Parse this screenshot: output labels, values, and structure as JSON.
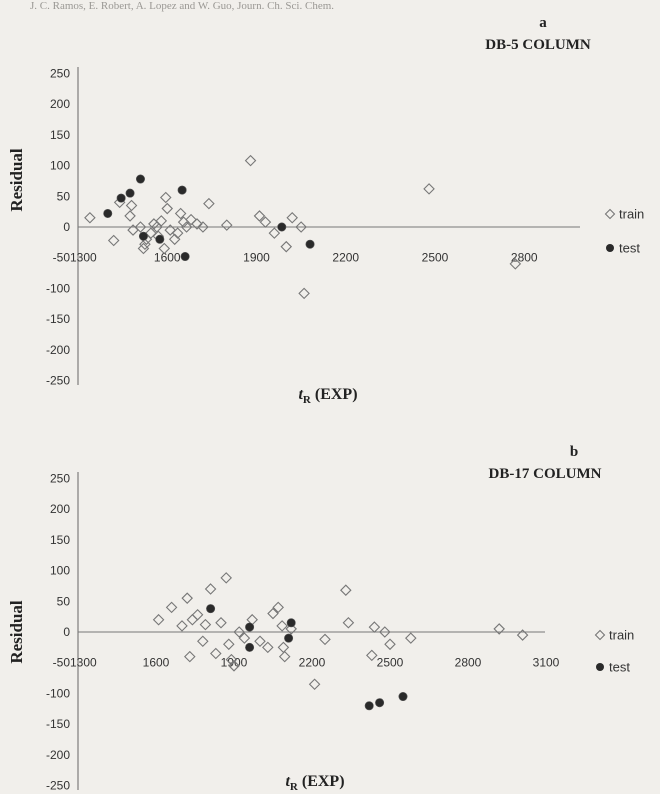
{
  "header_text": "J. C. Ramos, E. Robert, A. Lopez and W. Guo, Journ. Ch. Sci. Chem.",
  "chart_data": [
    {
      "type": "scatter",
      "panel_letter": "a",
      "title": "DB-5 COLUMN",
      "ylabel": "Residual",
      "xlabel_main": "t",
      "xlabel_sub": "R",
      "xlabel_rest": " (EXP)",
      "xlim": [
        1300,
        3100
      ],
      "ylim": [
        -250,
        250
      ],
      "yticks": [
        250,
        200,
        150,
        100,
        50,
        0,
        -50,
        -100,
        -150,
        -200,
        -250
      ],
      "ytick_labels": [
        "250",
        "200",
        "150",
        "100",
        "50",
        "0",
        "-50",
        "-100",
        "-150",
        "-200",
        "-250"
      ],
      "xticks": [
        1300,
        1600,
        1900,
        2200,
        2500,
        2800
      ],
      "xtick_labels": [
        "1300",
        "1600",
        "1900",
        "2200",
        "2500",
        "2800"
      ],
      "legend_position": "right",
      "grid": false,
      "series": [
        {
          "name": "train",
          "marker": "diamond-open",
          "points": [
            [
              1340,
              15
            ],
            [
              1420,
              -22
            ],
            [
              1440,
              40
            ],
            [
              1475,
              18
            ],
            [
              1480,
              35
            ],
            [
              1485,
              -5
            ],
            [
              1510,
              0
            ],
            [
              1520,
              -35
            ],
            [
              1525,
              -28
            ],
            [
              1530,
              -20
            ],
            [
              1545,
              -10
            ],
            [
              1555,
              5
            ],
            [
              1565,
              0
            ],
            [
              1570,
              -15
            ],
            [
              1580,
              10
            ],
            [
              1590,
              -35
            ],
            [
              1595,
              48
            ],
            [
              1600,
              30
            ],
            [
              1610,
              -5
            ],
            [
              1625,
              -20
            ],
            [
              1635,
              -10
            ],
            [
              1645,
              22
            ],
            [
              1655,
              8
            ],
            [
              1665,
              0
            ],
            [
              1680,
              12
            ],
            [
              1700,
              5
            ],
            [
              1720,
              0
            ],
            [
              1740,
              38
            ],
            [
              1800,
              3
            ],
            [
              1880,
              108
            ],
            [
              1910,
              18
            ],
            [
              1930,
              8
            ],
            [
              1960,
              -10
            ],
            [
              2000,
              -32
            ],
            [
              2020,
              15
            ],
            [
              2050,
              0
            ],
            [
              2060,
              -108
            ],
            [
              2480,
              62
            ],
            [
              2770,
              -60
            ]
          ]
        },
        {
          "name": "test",
          "marker": "circle-filled",
          "points": [
            [
              1400,
              22
            ],
            [
              1445,
              47
            ],
            [
              1475,
              55
            ],
            [
              1510,
              78
            ],
            [
              1520,
              -15
            ],
            [
              1575,
              -20
            ],
            [
              1650,
              60
            ],
            [
              1660,
              -48
            ],
            [
              1985,
              0
            ],
            [
              2080,
              -28
            ]
          ]
        }
      ]
    },
    {
      "type": "scatter",
      "panel_letter": "b",
      "title": "DB-17 COLUMN",
      "ylabel": "Residual",
      "xlabel_main": "t",
      "xlabel_sub": "R",
      "xlabel_rest": " (EXP)",
      "xlim": [
        1300,
        3100
      ],
      "ylim": [
        -250,
        250
      ],
      "yticks": [
        250,
        200,
        150,
        100,
        50,
        0,
        -50,
        -100,
        -150,
        -200,
        -250
      ],
      "ytick_labels": [
        "250",
        "200",
        "150",
        "100",
        "50",
        "0",
        "-50",
        "-100",
        "-150",
        "-200",
        "-250"
      ],
      "xticks": [
        1300,
        1600,
        1900,
        2200,
        2500,
        2800,
        3100
      ],
      "xtick_labels": [
        "1300",
        "1600",
        "1900",
        "2200",
        "2500",
        "2800",
        "3100"
      ],
      "legend_position": "right",
      "grid": false,
      "series": [
        {
          "name": "train",
          "marker": "diamond-open",
          "points": [
            [
              1610,
              20
            ],
            [
              1660,
              40
            ],
            [
              1700,
              10
            ],
            [
              1720,
              55
            ],
            [
              1730,
              -40
            ],
            [
              1740,
              20
            ],
            [
              1760,
              28
            ],
            [
              1780,
              -15
            ],
            [
              1790,
              12
            ],
            [
              1810,
              70
            ],
            [
              1830,
              -35
            ],
            [
              1850,
              15
            ],
            [
              1870,
              88
            ],
            [
              1880,
              -20
            ],
            [
              1890,
              -45
            ],
            [
              1900,
              -55
            ],
            [
              1920,
              0
            ],
            [
              1940,
              -10
            ],
            [
              1970,
              20
            ],
            [
              2000,
              -15
            ],
            [
              2030,
              -25
            ],
            [
              2050,
              30
            ],
            [
              2070,
              40
            ],
            [
              2085,
              10
            ],
            [
              2090,
              -25
            ],
            [
              2095,
              -40
            ],
            [
              2120,
              5
            ],
            [
              2210,
              -85
            ],
            [
              2250,
              -12
            ],
            [
              2330,
              68
            ],
            [
              2340,
              15
            ],
            [
              2430,
              -38
            ],
            [
              2440,
              8
            ],
            [
              2480,
              0
            ],
            [
              2500,
              -20
            ],
            [
              2580,
              -10
            ],
            [
              2920,
              5
            ],
            [
              3010,
              -5
            ]
          ]
        },
        {
          "name": "test",
          "marker": "circle-filled",
          "points": [
            [
              1810,
              38
            ],
            [
              1960,
              8
            ],
            [
              1960,
              -25
            ],
            [
              2110,
              -10
            ],
            [
              2120,
              15
            ],
            [
              2420,
              -120
            ],
            [
              2460,
              -115
            ],
            [
              2550,
              -105
            ]
          ]
        }
      ]
    }
  ]
}
